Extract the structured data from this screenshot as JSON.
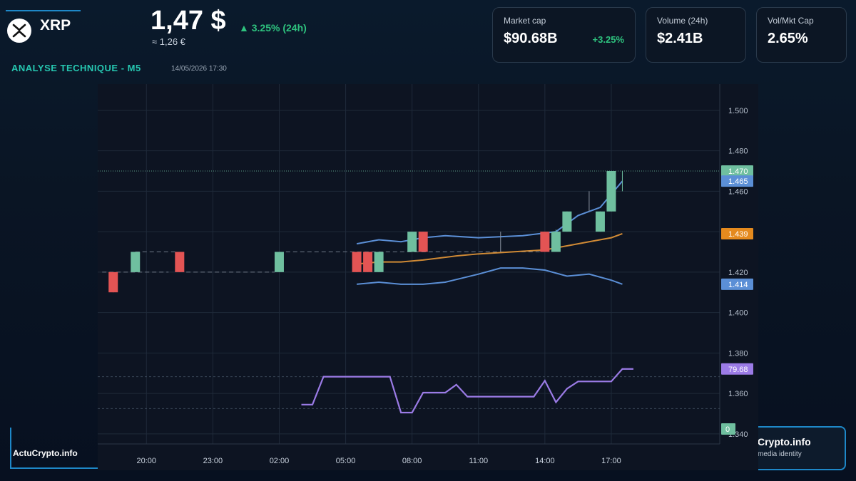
{
  "header": {
    "coin": "XRP",
    "price": "1,47 $",
    "price_eur": "≈ 1,26 €",
    "change_24h": "▲ 3.25% (24h)",
    "section_title": "ANALYSE TECHNIQUE - M5",
    "datetime": "14/05/2026 17:30"
  },
  "cards": [
    {
      "label": "Market cap",
      "value": "$90.68B",
      "delta": "+3.25%"
    },
    {
      "label": "Volume (24h)",
      "value": "$2.41B",
      "delta": ""
    },
    {
      "label": "Vol/Mkt Cap",
      "value": "2.65%",
      "delta": ""
    }
  ],
  "footer": {
    "brand": "ActuCrypto.info",
    "side_title": "Crypto.info",
    "side_sub": "media identity"
  },
  "colors": {
    "up": "#6fbf9f",
    "down": "#e35454",
    "band": "#5b8fd6",
    "ma": "#d08a35",
    "rsi": "#9b7be6",
    "grid": "#1f2a3a"
  },
  "chart_data": {
    "type": "candlestick",
    "x_ticks": [
      "20:00",
      "23:00",
      "02:00",
      "05:00",
      "08:00",
      "11:00",
      "14:00",
      "17:00"
    ],
    "x_hours": [
      0,
      3,
      6,
      9,
      12,
      15,
      18,
      21
    ],
    "y_ticks": [
      "1.500",
      "1.480",
      "1.460",
      "1.440",
      "1.420",
      "1.400",
      "1.380",
      "1.360",
      "1.340"
    ],
    "ylim": [
      1.335,
      1.513
    ],
    "xlim": [
      -2.2,
      25.9
    ],
    "candles": [
      {
        "t": -1.5,
        "o": 1.42,
        "h": 1.42,
        "l": 1.41,
        "c": 1.41
      },
      {
        "t": -0.5,
        "o": 1.42,
        "h": 1.43,
        "l": 1.42,
        "c": 1.43
      },
      {
        "t": 1.5,
        "o": 1.43,
        "h": 1.43,
        "l": 1.42,
        "c": 1.42
      },
      {
        "t": 6.0,
        "o": 1.42,
        "h": 1.43,
        "l": 1.42,
        "c": 1.43
      },
      {
        "t": 9.5,
        "o": 1.43,
        "h": 1.43,
        "l": 1.42,
        "c": 1.42
      },
      {
        "t": 10.0,
        "o": 1.43,
        "h": 1.43,
        "l": 1.42,
        "c": 1.42
      },
      {
        "t": 10.5,
        "o": 1.42,
        "h": 1.43,
        "l": 1.42,
        "c": 1.43
      },
      {
        "t": 12.0,
        "o": 1.43,
        "h": 1.44,
        "l": 1.43,
        "c": 1.44
      },
      {
        "t": 12.5,
        "o": 1.44,
        "h": 1.44,
        "l": 1.43,
        "c": 1.43
      },
      {
        "t": 18.0,
        "o": 1.44,
        "h": 1.44,
        "l": 1.43,
        "c": 1.43
      },
      {
        "t": 18.5,
        "o": 1.43,
        "h": 1.441,
        "l": 1.43,
        "c": 1.44
      },
      {
        "t": 19.0,
        "o": 1.44,
        "h": 1.45,
        "l": 1.44,
        "c": 1.45
      },
      {
        "t": 20.5,
        "o": 1.44,
        "h": 1.45,
        "l": 1.44,
        "c": 1.45
      },
      {
        "t": 21.0,
        "o": 1.45,
        "h": 1.47,
        "l": 1.45,
        "c": 1.47
      }
    ],
    "upper_band": [
      [
        9.5,
        1.434
      ],
      [
        10.5,
        1.436
      ],
      [
        11.5,
        1.435
      ],
      [
        12.5,
        1.437
      ],
      [
        13.5,
        1.438
      ],
      [
        15,
        1.437
      ],
      [
        17,
        1.438
      ],
      [
        18.5,
        1.44
      ],
      [
        19.5,
        1.448
      ],
      [
        20.5,
        1.452
      ],
      [
        21.5,
        1.465
      ]
    ],
    "lower_band": [
      [
        9.5,
        1.414
      ],
      [
        10.5,
        1.415
      ],
      [
        11.5,
        1.414
      ],
      [
        12.5,
        1.414
      ],
      [
        13.5,
        1.415
      ],
      [
        15,
        1.419
      ],
      [
        16,
        1.422
      ],
      [
        17,
        1.422
      ],
      [
        18,
        1.421
      ],
      [
        19,
        1.418
      ],
      [
        20,
        1.419
      ],
      [
        21,
        1.416
      ],
      [
        21.5,
        1.414
      ]
    ],
    "moving_average": [
      [
        9.5,
        1.424
      ],
      [
        10.5,
        1.425
      ],
      [
        11.5,
        1.425
      ],
      [
        12.5,
        1.426
      ],
      [
        14,
        1.428
      ],
      [
        15,
        1.429
      ],
      [
        16.5,
        1.43
      ],
      [
        18,
        1.431
      ],
      [
        19,
        1.433
      ],
      [
        20,
        1.435
      ],
      [
        21,
        1.437
      ],
      [
        21.5,
        1.439
      ]
    ],
    "rsi": {
      "levels": [
        70,
        30
      ],
      "points": [
        [
          7.0,
          35
        ],
        [
          7.5,
          35
        ],
        [
          8.0,
          70
        ],
        [
          11.0,
          70
        ],
        [
          11.5,
          25
        ],
        [
          12.0,
          25
        ],
        [
          12.5,
          50
        ],
        [
          13.5,
          50
        ],
        [
          14.0,
          60
        ],
        [
          14.5,
          45
        ],
        [
          17.5,
          45
        ],
        [
          18.0,
          65
        ],
        [
          18.5,
          38
        ],
        [
          19.0,
          55
        ],
        [
          19.5,
          64
        ],
        [
          21.0,
          64
        ],
        [
          21.5,
          79.68
        ],
        [
          22.0,
          79.68
        ]
      ]
    },
    "last_labels": [
      {
        "text": "1.470",
        "color": "#6fbf9f"
      },
      {
        "text": "1.465",
        "color": "#5b8fd6"
      },
      {
        "text": "1.439",
        "color": "#e58a1e"
      },
      {
        "text": "1.414",
        "color": "#5b8fd6"
      },
      {
        "text": "79.68",
        "color": "#9b7be6"
      },
      {
        "text": "0",
        "color": "#6fbf9f"
      }
    ]
  }
}
